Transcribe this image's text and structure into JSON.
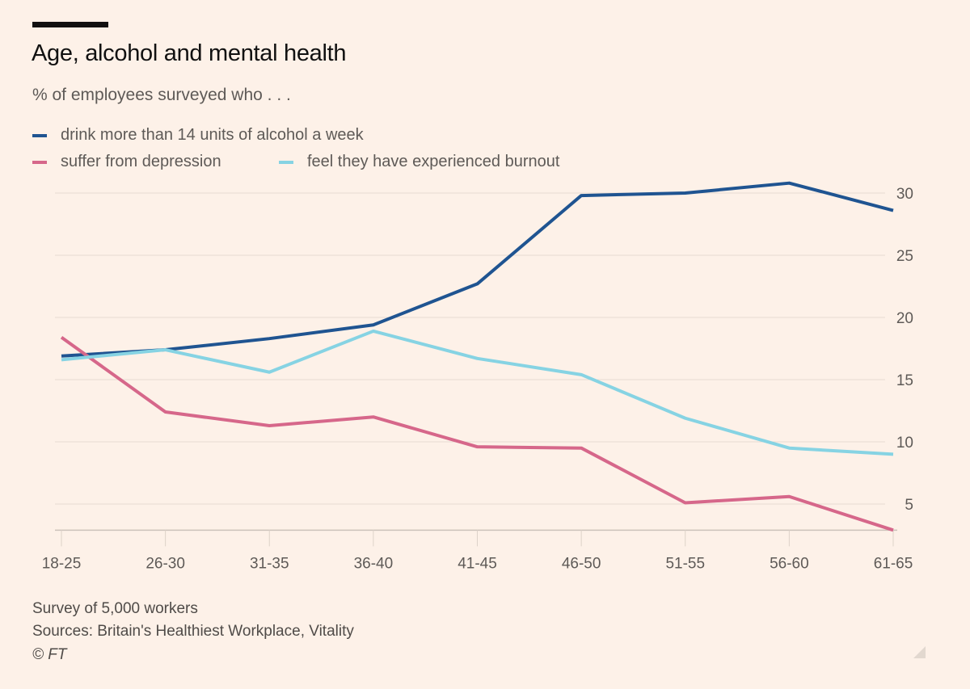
{
  "chart_data": {
    "type": "line",
    "title": "Age, alcohol and mental health",
    "subtitle": "% of employees surveyed who . . .",
    "categories": [
      "18-25",
      "26-30",
      "31-35",
      "36-40",
      "41-45",
      "46-50",
      "51-55",
      "56-60",
      "61-65"
    ],
    "series": [
      {
        "name": "drink more than 14 units of alcohol a week",
        "color": "#1f5491",
        "values": [
          16.9,
          17.4,
          18.3,
          19.4,
          22.7,
          29.8,
          30.0,
          30.8,
          28.6
        ]
      },
      {
        "name": "suffer from depression",
        "color": "#d6678a",
        "values": [
          18.4,
          12.4,
          11.3,
          12.0,
          9.6,
          9.5,
          5.1,
          5.6,
          2.9
        ]
      },
      {
        "name": "feel they have experienced burnout",
        "color": "#86d3e3",
        "values": [
          16.6,
          17.4,
          15.6,
          18.9,
          16.7,
          15.4,
          11.9,
          9.5,
          9.0
        ]
      }
    ],
    "yticks": [
      5,
      10,
      15,
      20,
      25,
      30
    ],
    "ylim": [
      2.9,
      31.5
    ],
    "y_axis_side": "right",
    "grid": true,
    "legend_placement": "top-left",
    "notes": [
      "Survey of 5,000 workers",
      "Sources: Britain's Healthiest Workplace, Vitality",
      "© FT"
    ]
  }
}
